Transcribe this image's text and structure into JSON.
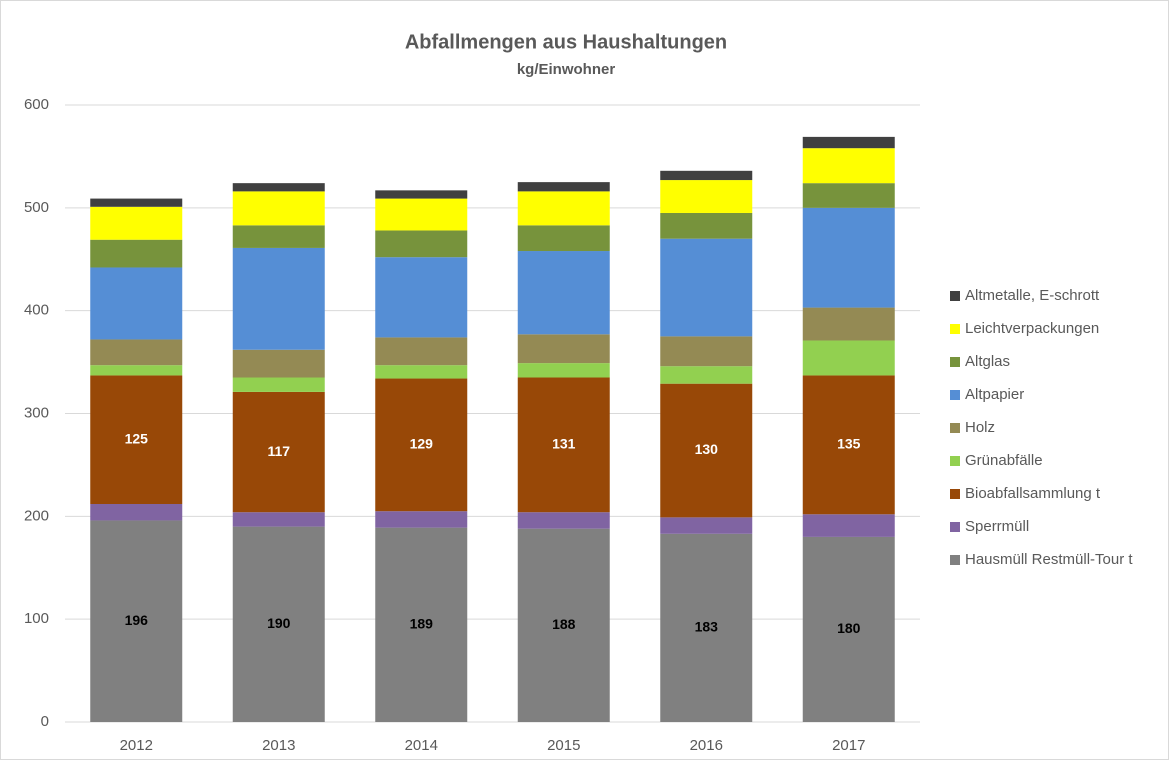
{
  "chart_data": {
    "type": "stacked_bar",
    "title": "Abfallmengen aus Haushaltungen",
    "subtitle": "kg/Einwohner",
    "categories": [
      "2012",
      "2013",
      "2014",
      "2015",
      "2016",
      "2017"
    ],
    "ylim": [
      0,
      600
    ],
    "yticks": [
      0,
      100,
      200,
      300,
      400,
      500,
      600
    ],
    "grid": true,
    "legend": "right",
    "series": [
      {
        "name": "Hausmüll Restmüll-Tour t",
        "color": "#808080",
        "show_labels": true,
        "label_color": "#000000",
        "values": [
          196,
          190,
          189,
          188,
          183,
          180
        ]
      },
      {
        "name": "Sperrmüll",
        "color": "#8064a2",
        "values": [
          16,
          14,
          16,
          16,
          16,
          22
        ]
      },
      {
        "name": "Bioabfallsammlung t",
        "color": "#984807",
        "show_labels": true,
        "label_color": "#ffffff",
        "values": [
          125,
          117,
          129,
          131,
          130,
          135
        ]
      },
      {
        "name": "Grünabfälle",
        "color": "#92d050",
        "values": [
          10,
          14,
          13,
          14,
          17,
          34
        ]
      },
      {
        "name": "Holz",
        "color": "#948a54",
        "values": [
          25,
          27,
          27,
          28,
          29,
          32
        ]
      },
      {
        "name": "Altpapier",
        "color": "#558ed5",
        "values": [
          70,
          99,
          78,
          81,
          95,
          97
        ]
      },
      {
        "name": "Altglas",
        "color": "#77933c",
        "values": [
          27,
          22,
          26,
          25,
          25,
          24
        ]
      },
      {
        "name": "Leichtverpackungen",
        "color": "#ffff00",
        "values": [
          32,
          33,
          31,
          33,
          32,
          34
        ]
      },
      {
        "name": "Altmetalle, E-schrott",
        "color": "#404040",
        "values": [
          8,
          8,
          8,
          9,
          9,
          11
        ]
      }
    ]
  }
}
